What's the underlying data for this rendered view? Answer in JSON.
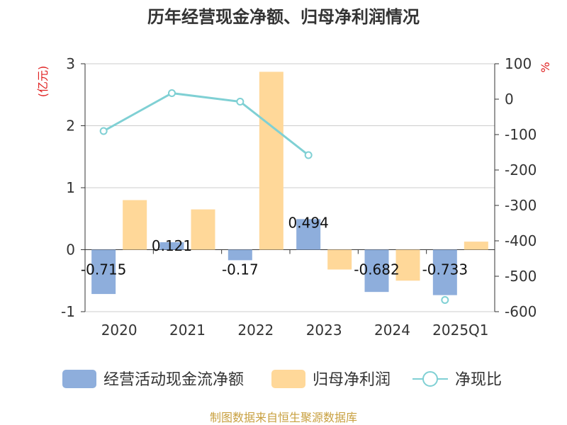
{
  "chart_data": {
    "type": "bar",
    "title": "历年经营现金净额、归母净利润情况",
    "categories": [
      "2020",
      "2021",
      "2022",
      "2023",
      "2024",
      "2025Q1"
    ],
    "left_axis": {
      "unit": "(亿元)",
      "ylim": [
        -1,
        3
      ],
      "ticks": [
        3,
        2,
        1,
        0,
        -1
      ]
    },
    "right_axis": {
      "unit": "%",
      "ylim": [
        -600,
        100
      ],
      "ticks": [
        100,
        0,
        -100,
        -200,
        -300,
        -400,
        -500,
        -600
      ]
    },
    "series": [
      {
        "name": "经营活动现金流净额",
        "type": "bar",
        "axis": "left",
        "color": "#8eaedc",
        "values": [
          -0.715,
          0.121,
          -0.17,
          0.494,
          -0.682,
          -0.733
        ],
        "labels": [
          "-0.715",
          "0.121",
          "-0.17",
          "0.494",
          "-0.682",
          "-0.733"
        ]
      },
      {
        "name": "归母净利润",
        "type": "bar",
        "axis": "left",
        "color": "#ffd899",
        "values": [
          0.8,
          0.65,
          2.87,
          -0.32,
          -0.5,
          0.13
        ]
      },
      {
        "name": "净现比",
        "type": "line",
        "axis": "right",
        "color": "#7fd0d4",
        "values": [
          -90,
          17,
          -7,
          -158,
          null,
          -567
        ]
      }
    ],
    "grid": true,
    "legend_position": "bottom"
  },
  "source": "制图数据来自恒生聚源数据库"
}
